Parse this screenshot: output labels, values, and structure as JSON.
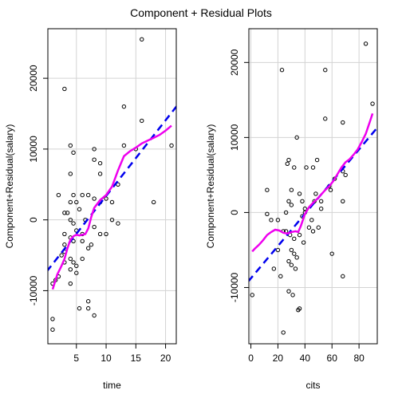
{
  "title": "Component + Residual Plots",
  "chart_data": [
    {
      "type": "scatter",
      "xlabel": "time",
      "ylabel": "Component+Residual(salary)",
      "xlim": [
        0.2,
        21.8
      ],
      "ylim": [
        -17500,
        27000
      ],
      "xticks": [
        5,
        10,
        15,
        20
      ],
      "yticks": [
        -10000,
        0,
        10000,
        20000
      ],
      "grid": true,
      "points": [
        [
          1,
          -15500
        ],
        [
          1,
          -14000
        ],
        [
          1,
          -9000
        ],
        [
          1.5,
          -8500
        ],
        [
          2,
          3500
        ],
        [
          2,
          -8000
        ],
        [
          2.5,
          -5000
        ],
        [
          3,
          18500
        ],
        [
          3,
          1000
        ],
        [
          3,
          -2000
        ],
        [
          3,
          -3500
        ],
        [
          3,
          -4500
        ],
        [
          3,
          -6000
        ],
        [
          3.5,
          1000
        ],
        [
          4,
          10500
        ],
        [
          4,
          6500
        ],
        [
          4,
          2500
        ],
        [
          4,
          0
        ],
        [
          4,
          -2500
        ],
        [
          4,
          -5500
        ],
        [
          4,
          -7000
        ],
        [
          4,
          -9000
        ],
        [
          4.5,
          9500
        ],
        [
          4.5,
          3500
        ],
        [
          4.5,
          -500
        ],
        [
          4.5,
          -3000
        ],
        [
          4.5,
          -6000
        ],
        [
          5,
          2500
        ],
        [
          5,
          -1500
        ],
        [
          5,
          -6500
        ],
        [
          5,
          -7500
        ],
        [
          5.5,
          1500
        ],
        [
          5.5,
          -12500
        ],
        [
          6,
          3500
        ],
        [
          6,
          -2000
        ],
        [
          6,
          -3000
        ],
        [
          6,
          -5500
        ],
        [
          6.5,
          0
        ],
        [
          7,
          3500
        ],
        [
          7,
          -4000
        ],
        [
          7,
          -11500
        ],
        [
          7,
          -12500
        ],
        [
          7.5,
          -3500
        ],
        [
          8,
          10000
        ],
        [
          8,
          8500
        ],
        [
          8,
          3000
        ],
        [
          8,
          -1000
        ],
        [
          8,
          -13500
        ],
        [
          9,
          8000
        ],
        [
          9,
          6500
        ],
        [
          9,
          2500
        ],
        [
          9,
          -2000
        ],
        [
          10,
          -2000
        ],
        [
          10,
          3000
        ],
        [
          11,
          2500
        ],
        [
          11,
          0
        ],
        [
          12,
          5000
        ],
        [
          12,
          -500
        ],
        [
          13,
          16000
        ],
        [
          13,
          10500
        ],
        [
          15,
          10000
        ],
        [
          16,
          25500
        ],
        [
          16,
          14000
        ],
        [
          18,
          2500
        ],
        [
          21,
          10500
        ]
      ],
      "fit_line": [
        [
          0,
          -7300
        ],
        [
          22,
          16200
        ]
      ],
      "smooth": [
        [
          1,
          -9800
        ],
        [
          1.8,
          -7700
        ],
        [
          2.5,
          -6500
        ],
        [
          3,
          -5500
        ],
        [
          3.5,
          -4000
        ],
        [
          4,
          -2800
        ],
        [
          4.5,
          -2300
        ],
        [
          5,
          -2100
        ],
        [
          5.5,
          -2200
        ],
        [
          6,
          -2100
        ],
        [
          6.5,
          -2000
        ],
        [
          7,
          -1200
        ],
        [
          7.5,
          400
        ],
        [
          8,
          1700
        ],
        [
          9,
          2800
        ],
        [
          10,
          3500
        ],
        [
          11,
          4700
        ],
        [
          12,
          7000
        ],
        [
          13,
          9000
        ],
        [
          14,
          9700
        ],
        [
          15,
          10200
        ],
        [
          16,
          10800
        ],
        [
          17,
          11200
        ],
        [
          18,
          11600
        ],
        [
          19,
          12000
        ],
        [
          20,
          12600
        ],
        [
          21,
          13300
        ]
      ]
    },
    {
      "type": "scatter",
      "xlabel": "cits",
      "ylabel": "Component+Residual(salary)",
      "xlim": [
        -1.5,
        93.5
      ],
      "ylim": [
        -17500,
        24500
      ],
      "xticks": [
        0,
        20,
        40,
        60,
        80
      ],
      "yticks": [
        -10000,
        0,
        10000,
        20000
      ],
      "grid": true,
      "points": [
        [
          1,
          -11000
        ],
        [
          12,
          3000
        ],
        [
          12,
          -200
        ],
        [
          15,
          -1000
        ],
        [
          17,
          -7500
        ],
        [
          20,
          -5000
        ],
        [
          20,
          -1000
        ],
        [
          22,
          -8500
        ],
        [
          23,
          19000
        ],
        [
          24,
          -16000
        ],
        [
          24,
          -2500
        ],
        [
          26,
          0
        ],
        [
          26,
          -2500
        ],
        [
          27,
          6500
        ],
        [
          28,
          7000
        ],
        [
          28,
          1500
        ],
        [
          28,
          -6500
        ],
        [
          28,
          -10500
        ],
        [
          29,
          -3000
        ],
        [
          30,
          3000
        ],
        [
          30,
          1000
        ],
        [
          30,
          -5000
        ],
        [
          30,
          -7000
        ],
        [
          31,
          -11000
        ],
        [
          32,
          6000
        ],
        [
          32,
          -3500
        ],
        [
          32,
          -5500
        ],
        [
          33,
          -7500
        ],
        [
          34,
          10000
        ],
        [
          34,
          -6000
        ],
        [
          35,
          -13000
        ],
        [
          36,
          -12800
        ],
        [
          36,
          -3000
        ],
        [
          36,
          2500
        ],
        [
          38,
          1500
        ],
        [
          38,
          -500
        ],
        [
          39,
          -4000
        ],
        [
          40,
          0
        ],
        [
          40,
          500
        ],
        [
          41,
          6000
        ],
        [
          43,
          -2000
        ],
        [
          45,
          -1000
        ],
        [
          46,
          6000
        ],
        [
          46,
          -2500
        ],
        [
          47,
          1500
        ],
        [
          48,
          2500
        ],
        [
          49,
          7000
        ],
        [
          50,
          -2000
        ],
        [
          52,
          500
        ],
        [
          52,
          1500
        ],
        [
          55,
          19000
        ],
        [
          55,
          12500
        ],
        [
          58,
          3500
        ],
        [
          59,
          3000
        ],
        [
          60,
          -5500
        ],
        [
          62,
          4500
        ],
        [
          68,
          12000
        ],
        [
          68,
          5500
        ],
        [
          68,
          1500
        ],
        [
          68,
          -8500
        ],
        [
          70,
          5000
        ],
        [
          85,
          22500
        ],
        [
          90,
          14500
        ]
      ],
      "fit_line": [
        [
          -2,
          -9200
        ],
        [
          93,
          11200
        ]
      ],
      "smooth": [
        [
          1,
          -5200
        ],
        [
          3,
          -4800
        ],
        [
          6,
          -4300
        ],
        [
          9,
          -3700
        ],
        [
          12,
          -3000
        ],
        [
          15,
          -2600
        ],
        [
          18,
          -2300
        ],
        [
          21,
          -2400
        ],
        [
          24,
          -2700
        ],
        [
          27,
          -2800
        ],
        [
          30,
          -2600
        ],
        [
          33,
          -2500
        ],
        [
          35,
          -2600
        ],
        [
          37,
          -1800
        ],
        [
          40,
          -200
        ],
        [
          43,
          700
        ],
        [
          46,
          1300
        ],
        [
          49,
          1800
        ],
        [
          52,
          2400
        ],
        [
          55,
          3000
        ],
        [
          58,
          3500
        ],
        [
          61,
          4200
        ],
        [
          64,
          5100
        ],
        [
          67,
          6000
        ],
        [
          70,
          6700
        ],
        [
          73,
          7100
        ],
        [
          76,
          7700
        ],
        [
          79,
          8400
        ],
        [
          82,
          9400
        ],
        [
          85,
          10500
        ],
        [
          88,
          12100
        ],
        [
          90,
          13200
        ]
      ]
    }
  ]
}
